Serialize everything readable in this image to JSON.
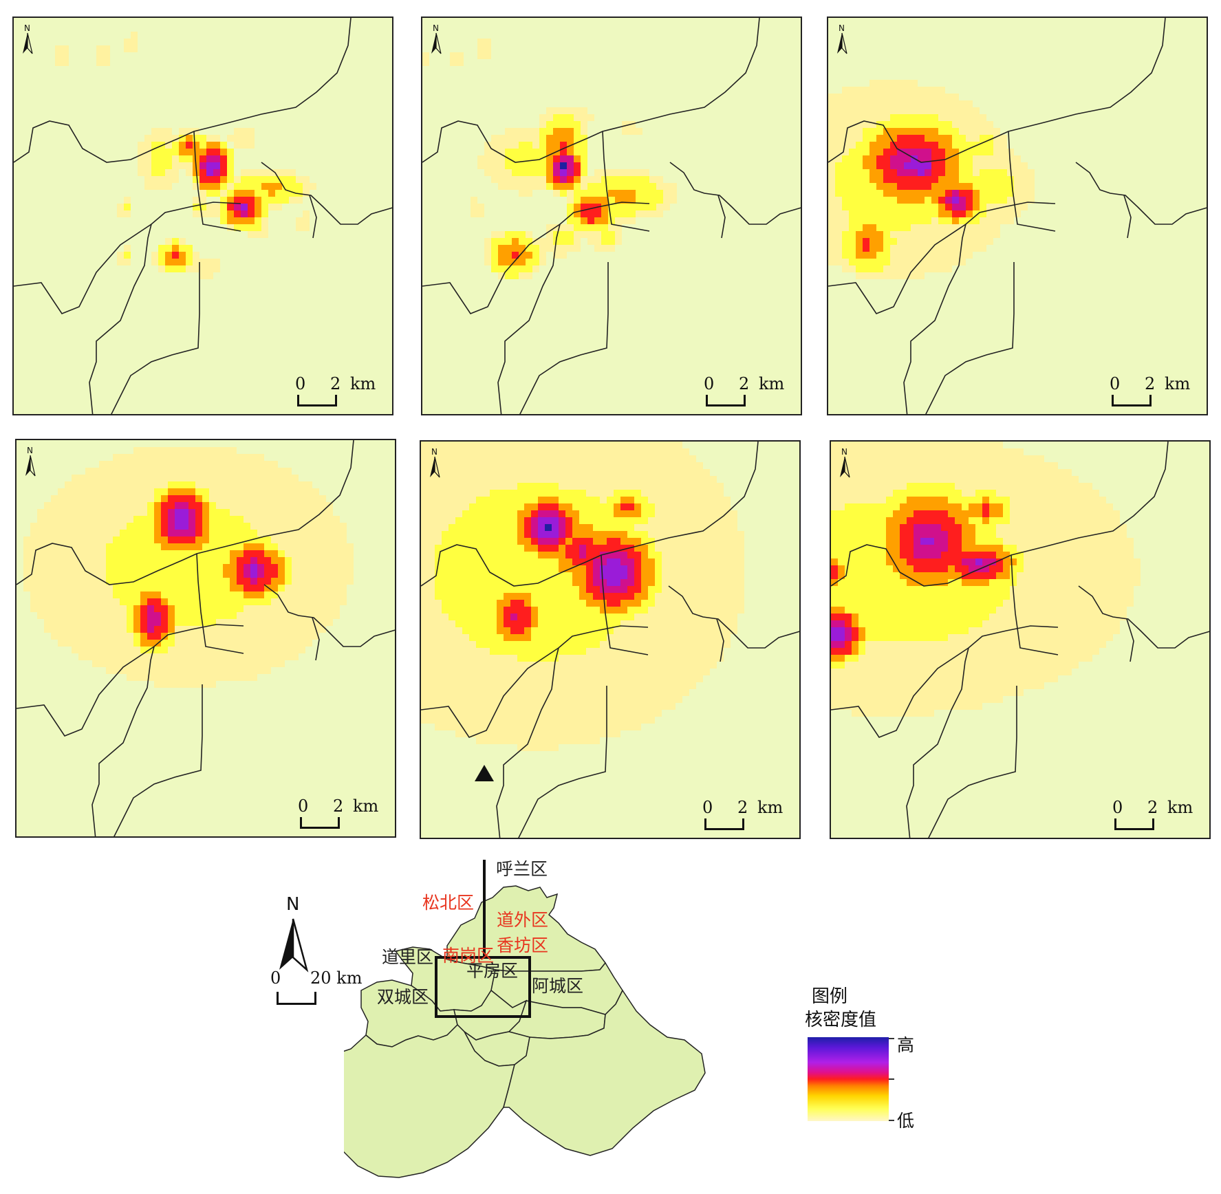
{
  "colors": {
    "background": "#eef9c0",
    "boundary": "#222222",
    "district_fill": "#dff0b0",
    "label_black": "#222222",
    "label_red": "#e8351f",
    "density_ramp": [
      "#fff2a0",
      "#ffff40",
      "#ffa000",
      "#ff1e1e",
      "#d0108c",
      "#9a1cd8",
      "#2020a0"
    ]
  },
  "panels": [
    {
      "id": "panel-1",
      "scale": {
        "zero": "0",
        "two": "2",
        "unit": "km"
      },
      "north": "N"
    },
    {
      "id": "panel-2",
      "scale": {
        "zero": "0",
        "two": "2",
        "unit": "km"
      },
      "north": "N"
    },
    {
      "id": "panel-3",
      "scale": {
        "zero": "0",
        "two": "2",
        "unit": "km"
      },
      "north": "N"
    },
    {
      "id": "panel-4",
      "scale": {
        "zero": "0",
        "two": "2",
        "unit": "km"
      },
      "north": "N"
    },
    {
      "id": "panel-5",
      "scale": {
        "zero": "0",
        "two": "2",
        "unit": "km"
      },
      "north": "N"
    },
    {
      "id": "panel-6",
      "scale": {
        "zero": "0",
        "two": "2",
        "unit": "km"
      },
      "north": "N"
    }
  ],
  "overview": {
    "north": "N",
    "scale": {
      "zero": "0",
      "length": "20 km"
    },
    "districts": [
      {
        "name": "呼兰区",
        "color": "#222222"
      },
      {
        "name": "松北区",
        "color": "#e8351f"
      },
      {
        "name": "道外区",
        "color": "#e8351f"
      },
      {
        "name": "道里区",
        "color": "#222222"
      },
      {
        "name": "南岗区",
        "color": "#e8351f"
      },
      {
        "name": "香坊区",
        "color": "#e8351f"
      },
      {
        "name": "平房区",
        "color": "#222222"
      },
      {
        "name": "双城区",
        "color": "#222222"
      },
      {
        "name": "阿城区",
        "color": "#222222"
      }
    ]
  },
  "legend": {
    "title": "图例",
    "subtitle": "核密度值",
    "high": "高",
    "low": "低"
  }
}
